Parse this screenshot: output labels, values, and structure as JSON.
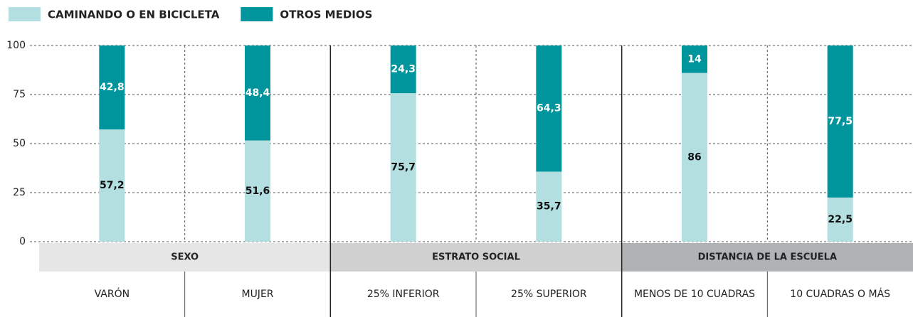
{
  "chart_data": {
    "type": "stacked-bar",
    "groups": [
      {
        "name": "SEXO",
        "categories": [
          "VARÓN",
          "MUJER"
        ]
      },
      {
        "name": "ESTRATO SOCIAL",
        "categories": [
          "25% INFERIOR",
          "25% SUPERIOR"
        ]
      },
      {
        "name": "DISTANCIA DE LA ESCUELA",
        "categories": [
          "MENOS DE 10 CUADRAS",
          "10 CUADRAS O MÁS"
        ]
      }
    ],
    "series": [
      {
        "name": "CAMINANDO O EN BICICLETA",
        "color": "#b3dfe1",
        "values": [
          57.2,
          51.6,
          75.7,
          35.7,
          86,
          22.5
        ],
        "value_labels": [
          "57,2",
          "51,6",
          "75,7",
          "35,7",
          "86",
          "22,5"
        ]
      },
      {
        "name": "OTROS MEDIOS",
        "color": "#00949c",
        "values": [
          42.8,
          48.4,
          24.3,
          64.3,
          14,
          77.5
        ],
        "value_labels": [
          "42,8",
          "48,4",
          "24,3",
          "64,3",
          "14",
          "77,5"
        ]
      }
    ],
    "ylim": [
      0,
      100
    ],
    "yticks": [
      0,
      25,
      50,
      75,
      100
    ],
    "grid": true
  }
}
